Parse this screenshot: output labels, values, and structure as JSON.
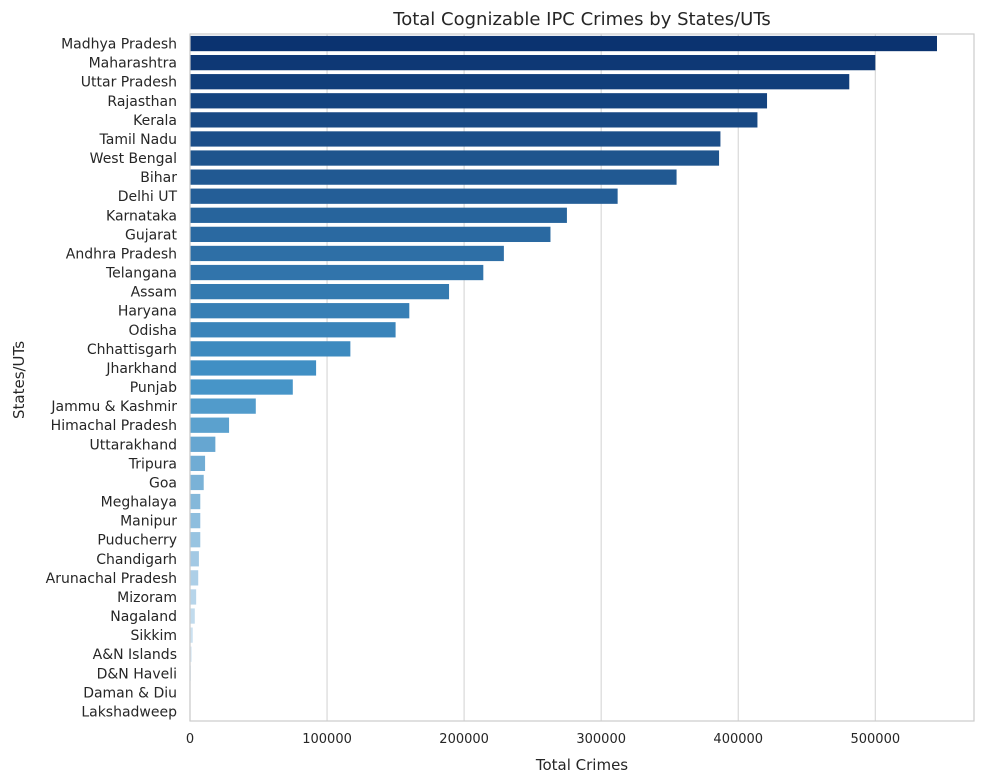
{
  "chart_data": {
    "type": "bar",
    "orientation": "horizontal",
    "title": "Total Cognizable IPC Crimes by States/UTs",
    "xlabel": "Total Crimes",
    "ylabel": "States/UTs",
    "xlim": [
      0,
      572000
    ],
    "xticks": [
      0,
      100000,
      200000,
      300000,
      400000,
      500000
    ],
    "xtick_labels": [
      "0",
      "100000",
      "200000",
      "300000",
      "400000",
      "500000"
    ],
    "grid": "vertical",
    "palette": "blues-reversed",
    "color_start": "#0b3370",
    "color_end": "#f4f8fd",
    "categories": [
      "Madhya Pradesh",
      "Maharashtra",
      "Uttar Pradesh",
      "Rajasthan",
      "Kerala",
      "Tamil Nadu",
      "West Bengal",
      "Bihar",
      "Delhi UT",
      "Karnataka",
      "Gujarat",
      "Andhra Pradesh",
      "Telangana",
      "Assam",
      "Haryana",
      "Odisha",
      "Chhattisgarh",
      "Jharkhand",
      "Punjab",
      "Jammu & Kashmir",
      "Himachal Pradesh",
      "Uttarakhand",
      "Tripura",
      "Goa",
      "Meghalaya",
      "Manipur",
      "Puducherry",
      "Chandigarh",
      "Arunachal Pradesh",
      "Mizoram",
      "Nagaland",
      "Sikkim",
      "A&N Islands",
      "D&N Haveli",
      "Daman & Diu",
      "Lakshadweep"
    ],
    "values": [
      545000,
      500000,
      481000,
      421000,
      414000,
      387000,
      386000,
      355000,
      312000,
      275000,
      263000,
      229000,
      214000,
      189000,
      160000,
      150000,
      117000,
      92000,
      75000,
      48000,
      28500,
      18500,
      11000,
      10000,
      7500,
      7500,
      7500,
      6500,
      6000,
      4500,
      3500,
      2000,
      1200,
      700,
      300,
      100
    ]
  }
}
